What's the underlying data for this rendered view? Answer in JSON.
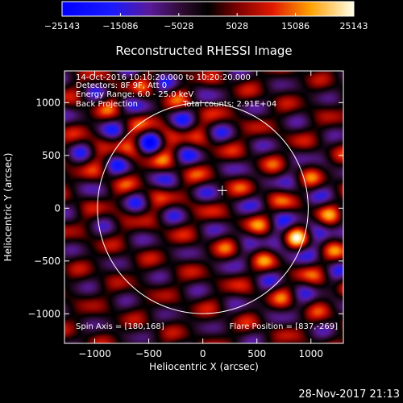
{
  "chart_data": {
    "type": "heatmap",
    "title": "Reconstructed RHESSI Image",
    "xlabel": "Heliocentric X (arcsec)",
    "ylabel": "Heliocentric Y (arcsec)",
    "xlim": [
      -1280,
      1300
    ],
    "ylim": [
      -1280,
      1300
    ],
    "xticks": [
      -1000,
      -500,
      0,
      500,
      1000
    ],
    "yticks": [
      -1000,
      -500,
      0,
      500,
      1000
    ],
    "xtick_labels": [
      "−1000",
      "−500",
      "0",
      "500",
      "1000"
    ],
    "ytick_labels": [
      "−1000",
      "−500",
      "0",
      "500",
      "1000"
    ],
    "colorbar": {
      "min": -25143,
      "max": 25143,
      "tick_values": [
        -25143,
        -15086,
        -5028,
        5028,
        15086,
        25143
      ],
      "tick_labels": [
        "−25143",
        "−15086",
        "−5028",
        "5028",
        "15086",
        "25143"
      ]
    },
    "annotations": {
      "time_range": "14-Oct-2016 10:10:20.000 to 10:20:20.000",
      "detectors": "Detectors: 8F 9F, Att 0",
      "energy_range": "Energy Range: 6.0 - 25.0 keV",
      "method": "Back Projection",
      "total_counts": "Total counts: 2.91E+04",
      "spin_axis": "Spin Axis = [180,168]",
      "flare_position": "Flare Position = [837,-269]"
    },
    "solar_limb": {
      "center": [
        0,
        0
      ],
      "radius": 975
    },
    "crosshair": [
      180,
      168
    ],
    "sources": [
      {
        "x": 880,
        "y": -280,
        "sign": 1,
        "peak": 25143
      },
      {
        "x": -500,
        "y": 620,
        "sign": -1,
        "peak": -25143
      }
    ],
    "grid": false
  },
  "footer": {
    "timestamp": "28-Nov-2017 21:13"
  }
}
